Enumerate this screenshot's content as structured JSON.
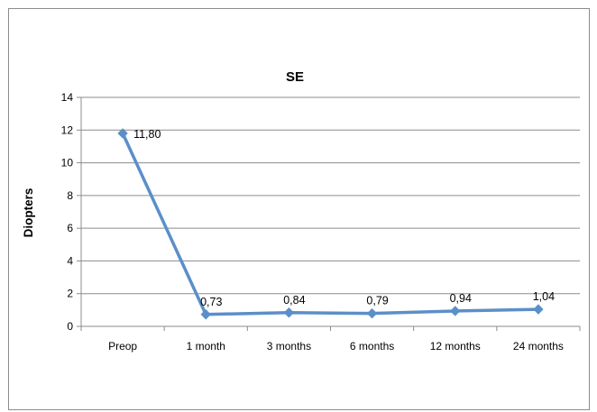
{
  "chart_data": {
    "type": "line",
    "title": "SE",
    "xlabel": "",
    "ylabel": "Diopters",
    "categories": [
      "Preop",
      "1 month",
      "3 months",
      "6 months",
      "12 months",
      "24 months"
    ],
    "series": [
      {
        "values": [
          11.8,
          0.73,
          0.84,
          0.79,
          0.94,
          1.04
        ],
        "data_labels": [
          "11,80",
          "0,73",
          "0,84",
          "0,79",
          "0,94",
          "1,04"
        ]
      }
    ],
    "ylim": [
      0,
      14
    ],
    "yticks": [
      0,
      2,
      4,
      6,
      8,
      10,
      12,
      14
    ],
    "grid": true,
    "legend": "none",
    "colors": {
      "series": "#5b8fc9",
      "grid": "#8c8c8c",
      "axis": "#8c8c8c",
      "border": "#8c8c8c"
    }
  }
}
